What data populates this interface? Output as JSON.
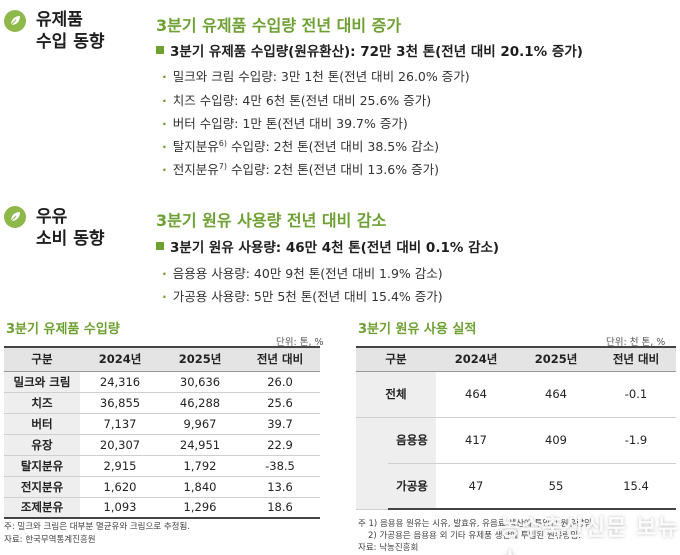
{
  "imports": {
    "label_line1": "유제품",
    "label_line2": "수입 동향",
    "heading": "3분기 유제품 수입량 전년 대비 증가",
    "main": "3분기 유제품 수입량(원유환산): 72만 3천 톤(전년 대비 20.1% 증가)",
    "items": [
      {
        "text": "밀크와 크림 수입량: 3만 1천 톤(전년 대비 26.0% 증가)"
      },
      {
        "text": "치즈 수입량: 4만 6천 톤(전년 대비 25.6% 증가)"
      },
      {
        "text": "버터 수입량: 1만 톤(전년 대비 39.7% 증가)"
      },
      {
        "text_a": "탈지분유",
        "sup": "6)",
        "text_b": " 수입량: 2천 톤(전년 대비 38.5% 감소)"
      },
      {
        "text_a": "전지분유",
        "sup": "7)",
        "text_b": " 수입량: 2천 톤(전년 대비 13.6% 증가)"
      }
    ]
  },
  "consumption": {
    "label_line1": "우유",
    "label_line2": "소비 동향",
    "heading": "3분기 원유 사용량 전년 대비 감소",
    "main": "3분기 원유 사용량: 46만 4천 톤(전년 대비 0.1% 감소)",
    "items": [
      "음용용 사용량: 40만 9천 톤(전년 대비 1.9% 감소)",
      "가공용 사용량: 5만 5천 톤(전년 대비 15.4% 증가)"
    ]
  },
  "table1": {
    "title": "3분기 유제품 수입량",
    "unit": "단위: 톤, %",
    "headers": [
      "구분",
      "2024년",
      "2025년",
      "전년 대비"
    ],
    "rows": [
      [
        "밀크와 크림",
        "24,316",
        "30,636",
        "26.0"
      ],
      [
        "치즈",
        "36,855",
        "46,288",
        "25.6"
      ],
      [
        "버터",
        "7,137",
        "9,967",
        "39.7"
      ],
      [
        "유장",
        "20,307",
        "24,951",
        "22.9"
      ],
      [
        "탈지분유",
        "2,915",
        "1,792",
        "-38.5"
      ],
      [
        "전지분유",
        "1,620",
        "1,840",
        "13.6"
      ],
      [
        "조제분유",
        "1,093",
        "1,296",
        "18.6"
      ]
    ],
    "note1": "주: 밀크와 크림은 대부분 멸균유와 크림으로 추정됨.",
    "note2": "자료: 한국무역통계진흥원"
  },
  "table2": {
    "title": "3분기 원유 사용 실적",
    "unit": "단위: 천 톤, %",
    "headers": [
      "구분",
      "2024년",
      "2025년",
      "전년 대비"
    ],
    "total": [
      "전체",
      "464",
      "464",
      "-0.1"
    ],
    "subrows": [
      [
        "음용용",
        "417",
        "409",
        "-1.9"
      ],
      [
        "가공용",
        "47",
        "55",
        "15.4"
      ]
    ],
    "note1": "주 1) 음용용 원유는 시유, 발효유, 유음료 생산에 투입된 원유량임.",
    "note2": "2) 가공용은 음용용 외 기타 유제품 생산에 투입된 원유량임.",
    "note3": "자료: 낙농진흥회"
  },
  "watermark": "농수축산신문 보뉴스",
  "colors": {
    "accent": "#6ea033",
    "icon": "#8fb84a",
    "header_bg": "#e4e4e4"
  }
}
